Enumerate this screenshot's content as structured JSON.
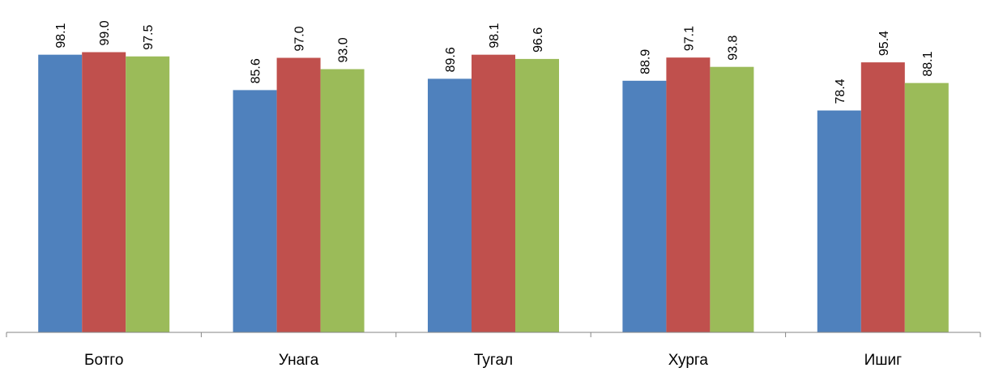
{
  "chart_data": {
    "type": "bar",
    "title": "",
    "xlabel": "",
    "ylabel": "",
    "categories": [
      "Ботго",
      "Унага",
      "Тугал",
      "Хурга",
      "Ишиг"
    ],
    "series": [
      {
        "values": [
          98.1,
          85.6,
          89.6,
          88.9,
          78.4
        ],
        "color": "#4F81BD"
      },
      {
        "values": [
          99.0,
          97.0,
          98.1,
          97.1,
          95.4
        ],
        "color": "#C0504D"
      },
      {
        "values": [
          97.5,
          93.0,
          96.6,
          93.8,
          88.1
        ],
        "color": "#9BBB59"
      }
    ],
    "ylim": [
      0,
      100
    ],
    "grid": false,
    "legend": "none",
    "data_labels": true,
    "data_label_rotation": -90
  }
}
